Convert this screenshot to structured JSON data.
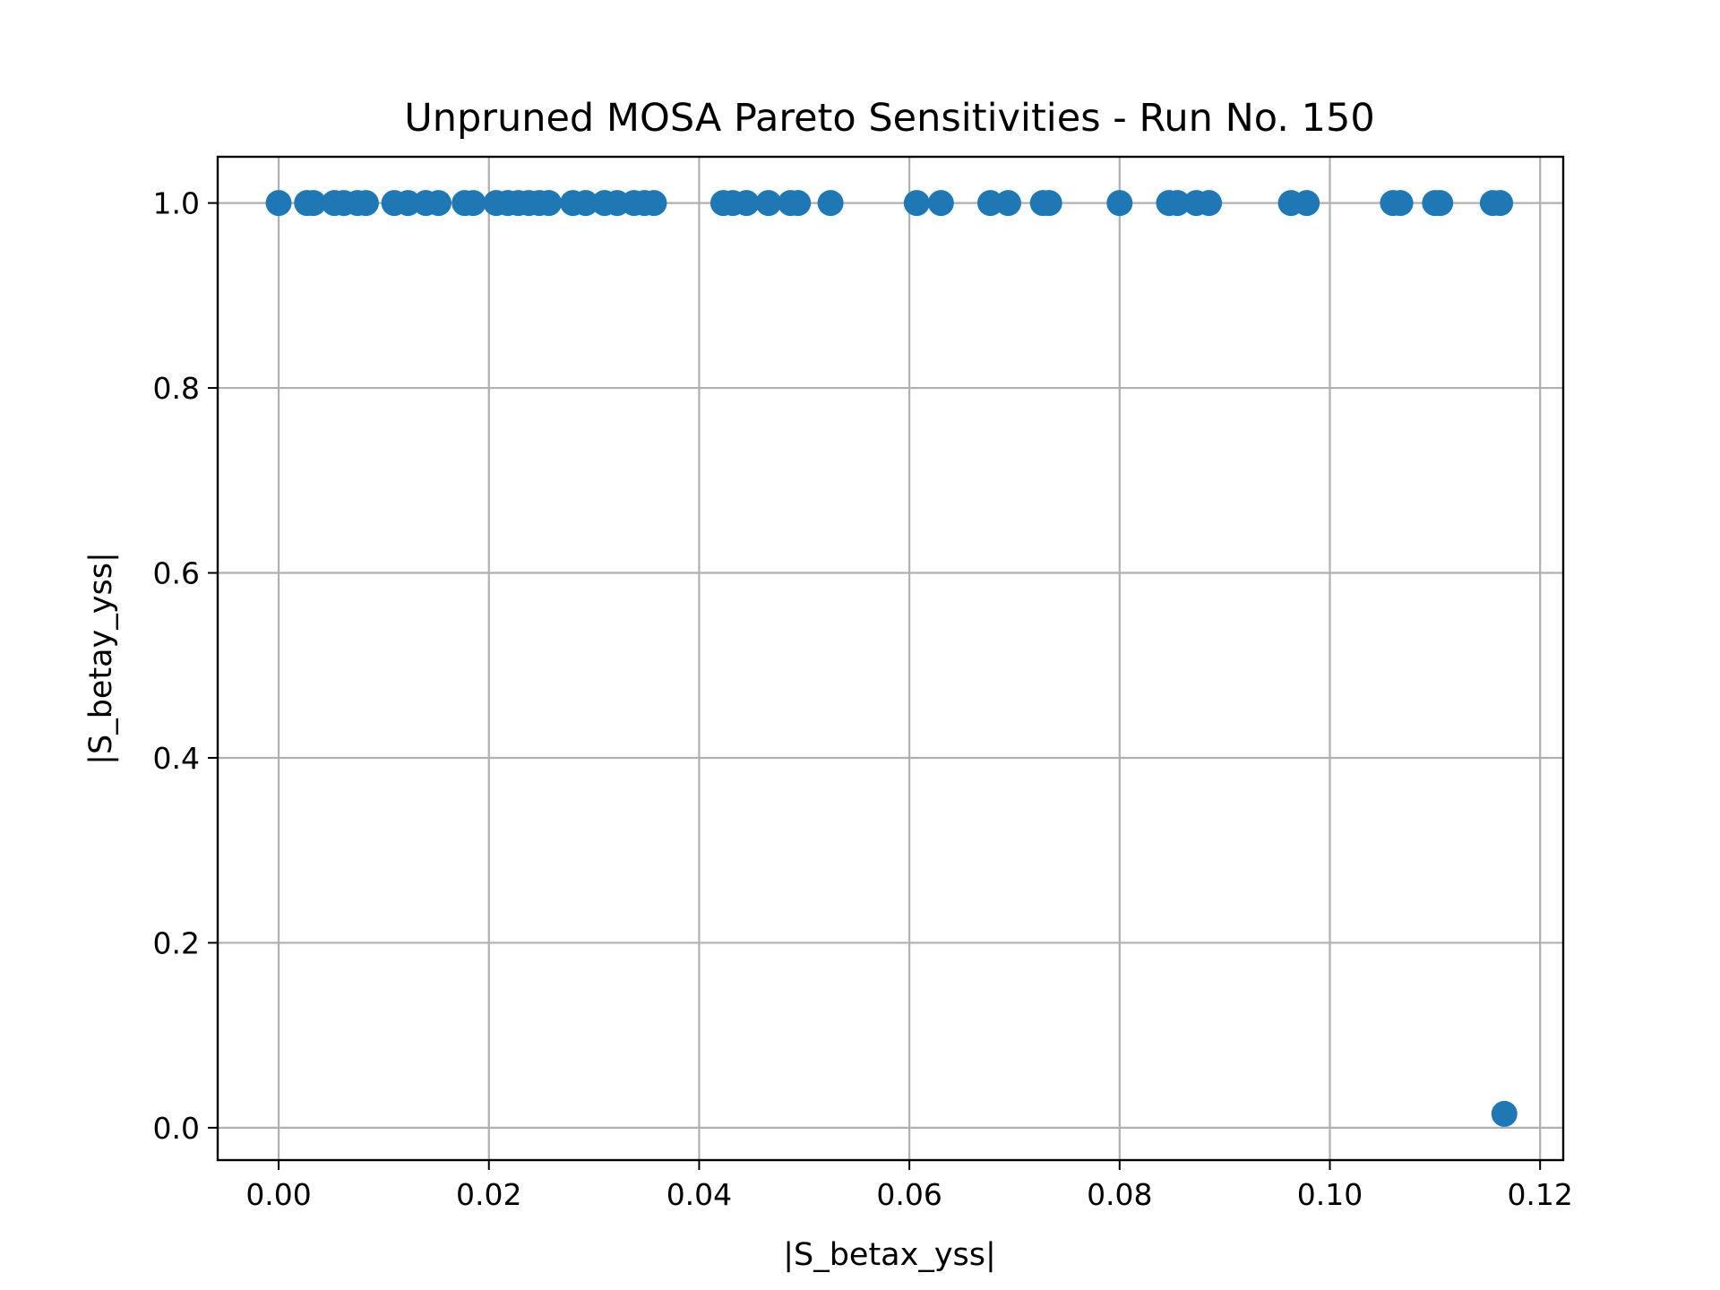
{
  "chart_data": {
    "type": "scatter",
    "title": "Unpruned MOSA Pareto Sensitivities - Run No. 150",
    "xlabel": "|S_betax_yss|",
    "ylabel": "|S_betay_yss|",
    "xlim": [
      -0.0058,
      0.1222
    ],
    "ylim": [
      -0.035,
      1.05
    ],
    "grid": true,
    "marker_color": "#1f77b4",
    "x_ticks": [
      0.0,
      0.02,
      0.04,
      0.06,
      0.08,
      0.1,
      0.12
    ],
    "x_tick_labels": [
      "0.00",
      "0.02",
      "0.04",
      "0.06",
      "0.08",
      "0.10",
      "0.12"
    ],
    "y_ticks": [
      0.0,
      0.2,
      0.4,
      0.6,
      0.8,
      1.0
    ],
    "y_tick_labels": [
      "0.0",
      "0.2",
      "0.4",
      "0.6",
      "0.8",
      "1.0"
    ],
    "points": [
      {
        "x": 0.0,
        "y": 1.0
      },
      {
        "x": 0.0027,
        "y": 1.0
      },
      {
        "x": 0.0033,
        "y": 1.0
      },
      {
        "x": 0.0053,
        "y": 1.0
      },
      {
        "x": 0.0062,
        "y": 1.0
      },
      {
        "x": 0.0075,
        "y": 1.0
      },
      {
        "x": 0.0083,
        "y": 1.0
      },
      {
        "x": 0.011,
        "y": 1.0
      },
      {
        "x": 0.0123,
        "y": 1.0
      },
      {
        "x": 0.014,
        "y": 1.0
      },
      {
        "x": 0.0152,
        "y": 1.0
      },
      {
        "x": 0.0177,
        "y": 1.0
      },
      {
        "x": 0.0185,
        "y": 1.0
      },
      {
        "x": 0.0207,
        "y": 1.0
      },
      {
        "x": 0.0218,
        "y": 1.0
      },
      {
        "x": 0.0228,
        "y": 1.0
      },
      {
        "x": 0.0238,
        "y": 1.0
      },
      {
        "x": 0.0248,
        "y": 1.0
      },
      {
        "x": 0.0257,
        "y": 1.0
      },
      {
        "x": 0.028,
        "y": 1.0
      },
      {
        "x": 0.0292,
        "y": 1.0
      },
      {
        "x": 0.031,
        "y": 1.0
      },
      {
        "x": 0.0322,
        "y": 1.0
      },
      {
        "x": 0.0338,
        "y": 1.0
      },
      {
        "x": 0.0348,
        "y": 1.0
      },
      {
        "x": 0.0357,
        "y": 1.0
      },
      {
        "x": 0.0423,
        "y": 1.0
      },
      {
        "x": 0.0432,
        "y": 1.0
      },
      {
        "x": 0.0445,
        "y": 1.0
      },
      {
        "x": 0.0466,
        "y": 1.0
      },
      {
        "x": 0.0487,
        "y": 1.0
      },
      {
        "x": 0.0494,
        "y": 1.0
      },
      {
        "x": 0.0525,
        "y": 1.0
      },
      {
        "x": 0.0607,
        "y": 1.0
      },
      {
        "x": 0.063,
        "y": 1.0
      },
      {
        "x": 0.0677,
        "y": 1.0
      },
      {
        "x": 0.0694,
        "y": 1.0
      },
      {
        "x": 0.0727,
        "y": 1.0
      },
      {
        "x": 0.0733,
        "y": 1.0
      },
      {
        "x": 0.08,
        "y": 1.0
      },
      {
        "x": 0.0847,
        "y": 1.0
      },
      {
        "x": 0.0855,
        "y": 1.0
      },
      {
        "x": 0.0873,
        "y": 1.0
      },
      {
        "x": 0.0885,
        "y": 1.0
      },
      {
        "x": 0.0963,
        "y": 1.0
      },
      {
        "x": 0.0978,
        "y": 1.0
      },
      {
        "x": 0.106,
        "y": 1.0
      },
      {
        "x": 0.1067,
        "y": 1.0
      },
      {
        "x": 0.11,
        "y": 1.0
      },
      {
        "x": 0.1105,
        "y": 1.0
      },
      {
        "x": 0.1155,
        "y": 1.0
      },
      {
        "x": 0.1162,
        "y": 1.0
      },
      {
        "x": 0.1166,
        "y": 0.015
      }
    ]
  }
}
